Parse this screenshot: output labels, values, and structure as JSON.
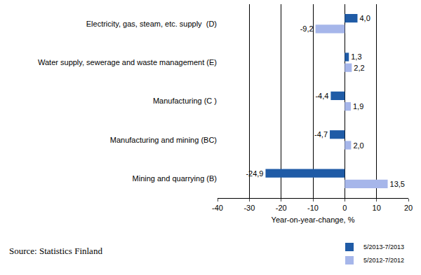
{
  "chart_data": {
    "type": "bar",
    "orientation": "horizontal",
    "categories": [
      "Electricity, gas, steam, etc. supply  (D)",
      "Water supply, sewerage and waste management (E)",
      "Manufacturing (C )",
      "Manufacturing and mining (BC)",
      "Mining and quarrying (B)"
    ],
    "series": [
      {
        "name": "5/2013-7/2013",
        "color": "#1f5ba6",
        "values": [
          4.0,
          1.3,
          -4.4,
          -4.7,
          -24.9
        ],
        "value_labels": [
          "4,0",
          "1,3",
          "-4,4",
          "-4,7",
          "-24,9"
        ]
      },
      {
        "name": "5/2012-7/2012",
        "color": "#a6b6ea",
        "values": [
          -9.2,
          2.2,
          1.9,
          2.0,
          13.5
        ],
        "value_labels": [
          "-9,2",
          "2,2",
          "1,9",
          "2,0",
          "13,5"
        ]
      }
    ],
    "xlim": [
      -40,
      20
    ],
    "xticks": [
      -40,
      -30,
      -20,
      -10,
      0,
      10,
      20
    ],
    "x_label": "Year-on-year-change, %",
    "grid": true,
    "data_labels": true,
    "legend": "bottom right",
    "source": "Source: Statistics Finland"
  }
}
